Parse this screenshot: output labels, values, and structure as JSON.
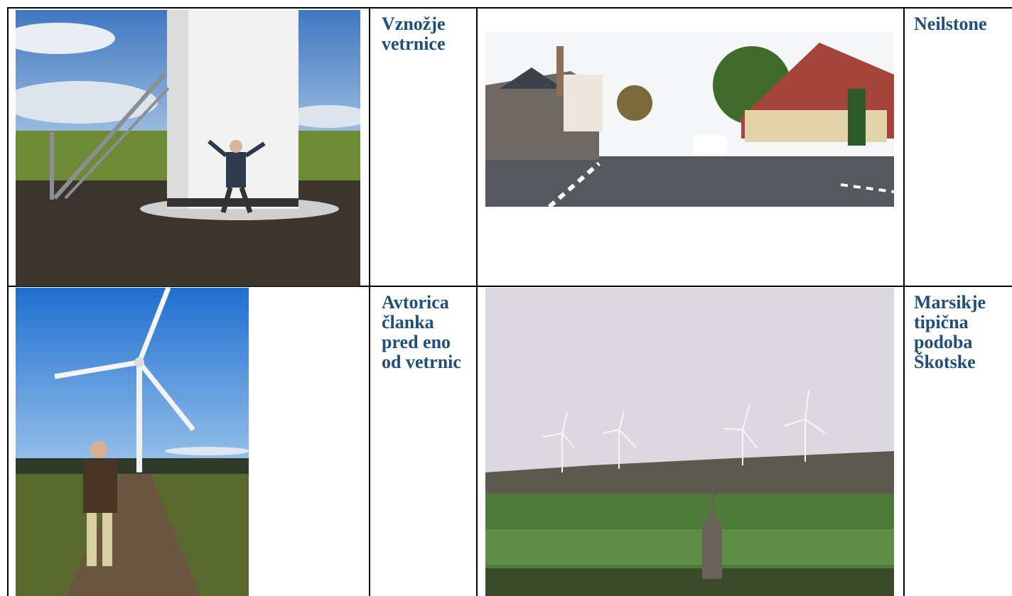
{
  "table": {
    "rows": [
      [
        "Vznožje vetrnice",
        "Neilstone"
      ],
      [
        "Avtorica članka pred eno od vetrnic",
        "Marsikje tipična podoba Škotske"
      ]
    ]
  }
}
